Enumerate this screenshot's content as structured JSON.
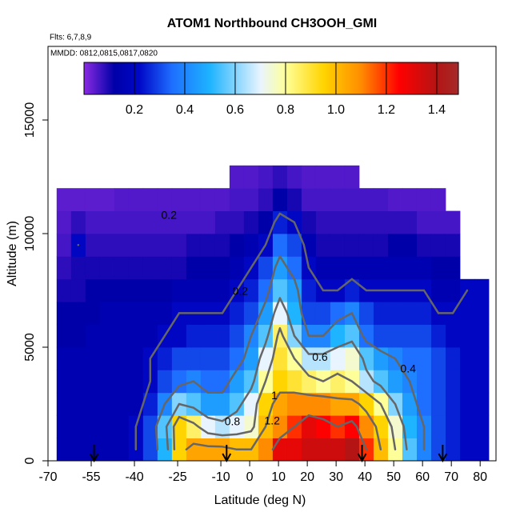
{
  "chart_data": {
    "type": "heatmap",
    "title": "ATOM1 Northbound CH3OOH_GMI",
    "subtitle": "Flts: 6,7,8,9",
    "annotation": "MMDD: 0812,0815,0817,0820",
    "x_label": "Latitude (deg N)",
    "y_label": "Altitude (m)",
    "xlim": [
      -70,
      85.5
    ],
    "ylim": [
      0,
      18240
    ],
    "xticks": [
      -70,
      -55,
      -40,
      -25,
      -10,
      0,
      10,
      20,
      30,
      40,
      50,
      60,
      70,
      80
    ],
    "yticks": [
      0,
      5000,
      10000,
      15000
    ],
    "x_edges": [
      -67,
      -62,
      -57,
      -52,
      -47,
      -42,
      -37,
      -32,
      -27,
      -22,
      -17,
      -12,
      -7,
      -2,
      3,
      8,
      13,
      18,
      23,
      28,
      33,
      38,
      43,
      48,
      53,
      58,
      63,
      68,
      73,
      78,
      83
    ],
    "y_edges": [
      0,
      1000,
      2000,
      3000,
      4000,
      5000,
      6000,
      7000,
      8000,
      9000,
      10000,
      11000,
      12000,
      13000
    ],
    "z": [
      [
        0.15,
        0.15,
        0.15,
        0.15,
        0.15,
        0.2,
        0.3,
        0.5,
        0.95,
        1.05,
        1.05,
        1.05,
        1.0,
        1.0,
        1.1,
        1.3,
        1.3,
        1.35,
        1.35,
        1.35,
        1.4,
        1.2,
        1.0,
        0.8,
        0.55,
        0.4,
        0.3,
        0.25,
        0.2,
        0.2
      ],
      [
        0.15,
        0.15,
        0.15,
        0.15,
        0.15,
        0.2,
        0.3,
        0.55,
        0.95,
        0.85,
        0.7,
        0.65,
        0.7,
        0.75,
        1.0,
        1.1,
        1.2,
        1.3,
        1.25,
        1.2,
        1.25,
        1.1,
        0.95,
        0.75,
        0.5,
        0.4,
        0.3,
        0.25,
        0.2,
        0.2
      ],
      [
        0.15,
        0.15,
        0.15,
        0.15,
        0.15,
        0.15,
        0.25,
        0.4,
        0.6,
        0.55,
        0.45,
        0.45,
        0.55,
        0.7,
        0.95,
        1.05,
        1.1,
        1.1,
        1.1,
        1.05,
        1.05,
        0.95,
        0.8,
        0.6,
        0.45,
        0.35,
        0.3,
        0.25,
        0.2,
        0.2
      ],
      [
        0.15,
        0.15,
        0.15,
        0.15,
        0.15,
        0.15,
        0.2,
        0.3,
        0.35,
        0.4,
        0.35,
        0.35,
        0.45,
        0.55,
        0.8,
        0.95,
        0.9,
        0.85,
        0.8,
        0.85,
        0.8,
        0.65,
        0.55,
        0.45,
        0.4,
        0.35,
        0.3,
        0.25,
        0.2,
        0.2
      ],
      [
        0.15,
        0.15,
        0.15,
        0.15,
        0.15,
        0.15,
        0.2,
        0.25,
        0.3,
        0.3,
        0.3,
        0.3,
        0.35,
        0.45,
        0.7,
        0.9,
        0.8,
        0.65,
        0.65,
        0.7,
        0.75,
        0.55,
        0.45,
        0.4,
        0.35,
        0.35,
        0.3,
        0.25,
        0.2,
        0.2
      ],
      [
        0.12,
        0.12,
        0.15,
        0.15,
        0.15,
        0.15,
        0.15,
        0.2,
        0.2,
        0.25,
        0.25,
        0.25,
        0.3,
        0.4,
        0.55,
        0.85,
        0.6,
        0.4,
        0.4,
        0.5,
        0.55,
        0.35,
        0.3,
        0.3,
        0.3,
        0.3,
        0.25,
        0.2,
        0.2,
        0.2
      ],
      [
        0.12,
        0.12,
        0.12,
        0.15,
        0.15,
        0.15,
        0.15,
        0.15,
        0.2,
        0.2,
        0.2,
        0.2,
        0.25,
        0.3,
        0.45,
        0.7,
        0.5,
        0.3,
        0.3,
        0.35,
        0.4,
        0.3,
        0.25,
        0.25,
        0.25,
        0.25,
        0.2,
        0.2,
        0.2,
        0.2
      ],
      [
        0.1,
        0.1,
        0.12,
        0.12,
        0.12,
        0.12,
        0.12,
        0.12,
        0.15,
        0.15,
        0.15,
        0.15,
        0.2,
        0.25,
        0.35,
        0.55,
        0.45,
        0.25,
        0.2,
        0.2,
        0.25,
        0.2,
        0.2,
        0.2,
        0.2,
        0.2,
        0.15,
        0.15,
        0.2,
        0.2
      ],
      [
        0.08,
        0.1,
        0.1,
        0.1,
        0.1,
        0.1,
        0.1,
        0.1,
        0.1,
        0.12,
        0.12,
        0.12,
        0.15,
        0.2,
        0.3,
        0.45,
        0.35,
        0.2,
        0.15,
        0.15,
        0.15,
        0.15,
        0.15,
        0.15,
        0.15,
        0.15,
        0.12,
        0.12,
        null,
        null
      ],
      [
        0.06,
        0.2,
        0.08,
        0.08,
        0.08,
        0.08,
        0.08,
        0.08,
        0.08,
        0.1,
        0.1,
        0.1,
        0.12,
        0.15,
        0.2,
        0.35,
        0.3,
        0.15,
        0.1,
        0.1,
        0.1,
        0.1,
        0.1,
        0.12,
        0.12,
        0.1,
        0.1,
        0.1,
        null,
        null
      ],
      [
        0.05,
        0.08,
        0.06,
        0.06,
        0.06,
        0.06,
        0.06,
        0.06,
        0.06,
        0.06,
        0.06,
        0.08,
        0.08,
        0.1,
        0.12,
        0.25,
        0.2,
        0.1,
        0.08,
        0.08,
        0.08,
        0.08,
        0.08,
        0.08,
        0.08,
        0.06,
        0.06,
        0.06,
        null,
        null
      ],
      [
        0.04,
        0.04,
        0.04,
        0.04,
        0.05,
        0.05,
        0.05,
        0.05,
        0.05,
        0.05,
        0.05,
        0.05,
        0.06,
        0.06,
        0.08,
        0.12,
        0.1,
        0.06,
        0.06,
        0.06,
        0.06,
        0.06,
        0.06,
        0.05,
        0.05,
        0.05,
        0.05,
        null,
        null,
        null
      ],
      [
        null,
        null,
        null,
        null,
        null,
        null,
        null,
        null,
        null,
        null,
        null,
        null,
        0.05,
        0.05,
        0.06,
        0.08,
        0.06,
        0.05,
        0.05,
        0.05,
        0.05,
        null,
        null,
        null,
        null,
        null,
        null,
        null,
        null,
        null
      ]
    ],
    "zlim": [
      0,
      1.486
    ],
    "zticks": [
      0.2,
      0.4,
      0.6,
      0.8,
      {
        "value": 1,
        "label": "1.0"
      },
      1.2,
      1.4
    ],
    "colorscale": [
      [
        0,
        "#8a2be2"
      ],
      [
        0.12,
        "#0000a8"
      ],
      [
        0.22,
        "#0008c8"
      ],
      [
        0.35,
        "#1e6eff"
      ],
      [
        0.5,
        "#1eb4ff"
      ],
      [
        0.7,
        "#e8f4ff"
      ],
      [
        0.8,
        "#ffff9a"
      ],
      [
        0.95,
        "#ffd400"
      ],
      [
        1.1,
        "#ff8c00"
      ],
      [
        1.25,
        "#ff0000"
      ],
      [
        1.4,
        "#b41414"
      ],
      [
        1.486,
        "#a52a2a"
      ]
    ],
    "contour_levels": [
      0.2,
      0.4,
      0.6,
      0.8,
      1,
      1.2
    ],
    "contour_color": "#666666",
    "contour_labels": [
      {
        "value": 0.2,
        "x": -3.3,
        "y": 7430
      },
      {
        "value": 0.2,
        "x": -28,
        "y": 10775
      },
      {
        "value": 0.6,
        "x": 24.4,
        "y": 4540
      },
      {
        "value": 0.4,
        "x": 55,
        "y": 4014
      },
      {
        "value": 1,
        "x": 8.6,
        "y": 2850
      },
      {
        "value": 0.8,
        "x": -6,
        "y": 1690
      },
      {
        "value": 1.2,
        "x": 7.8,
        "y": 1725
      }
    ],
    "markers": [
      -54,
      -8,
      39,
      67
    ]
  }
}
